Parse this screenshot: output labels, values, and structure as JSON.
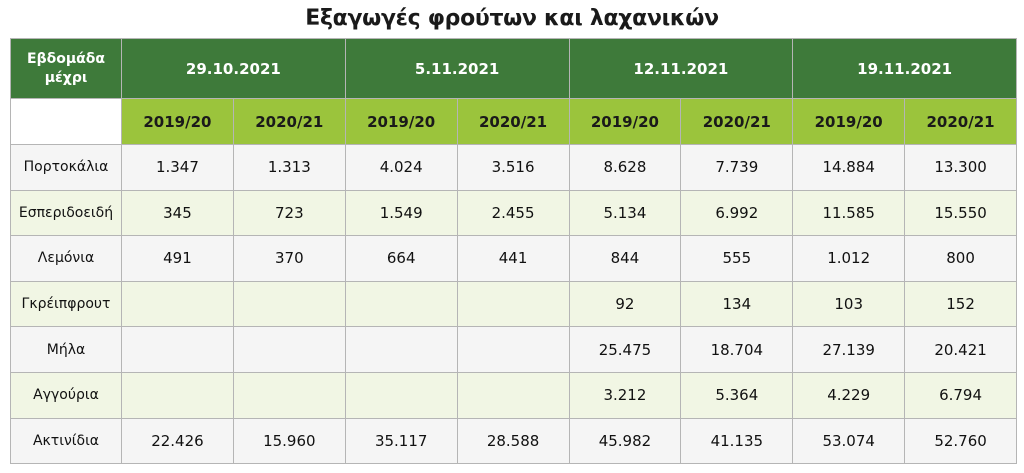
{
  "title": "Εξαγωγές φρούτων και λαχανικών",
  "colors": {
    "header_dark_green": "#3e7a3a",
    "header_light_green": "#9bc43c",
    "row_light_green": "#f1f6e4",
    "row_grey": "#f5f5f5"
  },
  "table": {
    "week_header": "Εβδομάδα μέχρι",
    "dates": [
      "29.10.2021",
      "5.11.2021",
      "12.11.2021",
      "19.11.2021"
    ],
    "season_labels": [
      "2019/20",
      "2020/21",
      "2019/20",
      "2020/21",
      "2019/20",
      "2020/21",
      "2019/20",
      "2020/21"
    ],
    "rows": [
      {
        "label": "Πορτοκάλια",
        "values": [
          "1.347",
          "1.313",
          "4.024",
          "3.516",
          "8.628",
          "7.739",
          "14.884",
          "13.300"
        ]
      },
      {
        "label": "Εσπεριδοειδή",
        "values": [
          "345",
          "723",
          "1.549",
          "2.455",
          "5.134",
          "6.992",
          "11.585",
          "15.550"
        ]
      },
      {
        "label": "Λεμόνια",
        "values": [
          "491",
          "370",
          "664",
          "441",
          "844",
          "555",
          "1.012",
          "800"
        ]
      },
      {
        "label": "Γκρέιπφρουτ",
        "values": [
          "",
          "",
          "",
          "",
          "92",
          "134",
          "103",
          "152"
        ]
      },
      {
        "label": "Μήλα",
        "values": [
          "",
          "",
          "",
          "",
          "25.475",
          "18.704",
          "27.139",
          "20.421"
        ]
      },
      {
        "label": "Αγγούρια",
        "values": [
          "",
          "",
          "",
          "",
          "3.212",
          "5.364",
          "4.229",
          "6.794"
        ]
      },
      {
        "label": "Ακτινίδια",
        "values": [
          "22.426",
          "15.960",
          "35.117",
          "28.588",
          "45.982",
          "41.135",
          "53.074",
          "52.760"
        ]
      }
    ]
  }
}
